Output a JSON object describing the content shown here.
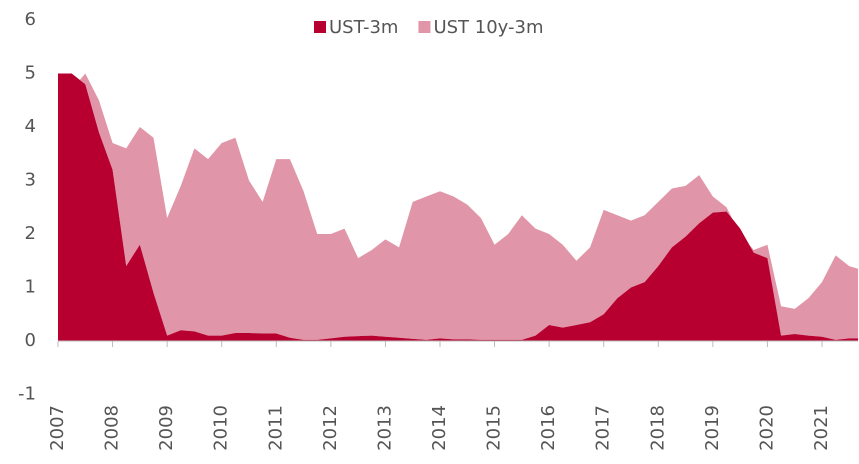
{
  "chart_data": {
    "type": "stacked_area",
    "x": [
      2007,
      2007.25,
      2007.5,
      2007.75,
      2008,
      2008.25,
      2008.5,
      2008.75,
      2009,
      2009.25,
      2009.5,
      2009.75,
      2010,
      2010.25,
      2010.5,
      2010.75,
      2011,
      2011.25,
      2011.5,
      2011.75,
      2012,
      2012.25,
      2012.5,
      2012.75,
      2013,
      2013.25,
      2013.5,
      2013.75,
      2014,
      2014.25,
      2014.5,
      2014.75,
      2015,
      2015.25,
      2015.5,
      2015.75,
      2016,
      2016.25,
      2016.5,
      2016.75,
      2017,
      2017.25,
      2017.5,
      2017.75,
      2018,
      2018.25,
      2018.5,
      2018.75,
      2019,
      2019.25,
      2019.5,
      2019.75,
      2020,
      2020.25,
      2020.5,
      2020.75,
      2021,
      2021.25,
      2021.5,
      2021.66
    ],
    "series": [
      {
        "name": "UST-3m",
        "color": "#b80030",
        "values": [
          5.0,
          5.0,
          4.8,
          3.9,
          3.2,
          1.4,
          1.8,
          0.9,
          0.1,
          0.2,
          0.18,
          0.1,
          0.1,
          0.15,
          0.15,
          0.14,
          0.14,
          0.06,
          0.02,
          0.02,
          0.05,
          0.08,
          0.09,
          0.1,
          0.08,
          0.06,
          0.04,
          0.02,
          0.05,
          0.03,
          0.03,
          0.02,
          0.02,
          0.02,
          0.02,
          0.1,
          0.3,
          0.25,
          0.3,
          0.35,
          0.5,
          0.8,
          1.0,
          1.1,
          1.4,
          1.75,
          1.95,
          2.2,
          2.4,
          2.42,
          2.1,
          1.65,
          1.55,
          0.1,
          0.13,
          0.1,
          0.08,
          0.02,
          0.05,
          0.05
        ]
      },
      {
        "name": "UST 10y-3m",
        "color": "#e096a8",
        "values": [
          -0.2,
          -0.3,
          0.2,
          0.6,
          0.5,
          2.2,
          2.2,
          2.9,
          2.2,
          2.7,
          3.42,
          3.3,
          3.6,
          3.65,
          2.85,
          2.46,
          3.26,
          3.34,
          2.78,
          1.98,
          1.95,
          2.02,
          1.46,
          1.6,
          1.82,
          1.69,
          2.56,
          2.68,
          2.75,
          2.67,
          2.52,
          2.28,
          1.78,
          1.98,
          2.33,
          2.0,
          1.7,
          1.55,
          1.2,
          1.4,
          1.95,
          1.55,
          1.25,
          1.25,
          1.2,
          1.1,
          0.95,
          0.9,
          0.3,
          0.08,
          -0.1,
          0.05,
          0.25,
          0.55,
          0.47,
          0.7,
          1.02,
          1.58,
          1.35,
          1.3
        ]
      }
    ],
    "xlim": [
      2007,
      2021.66
    ],
    "xticks": [
      2007,
      2008,
      2009,
      2010,
      2011,
      2012,
      2013,
      2014,
      2015,
      2016,
      2017,
      2018,
      2019,
      2020,
      2021
    ],
    "ylim": [
      -1,
      6
    ],
    "yticks": [
      -1,
      0,
      1,
      2,
      3,
      4,
      5,
      6
    ],
    "legend": "top"
  }
}
